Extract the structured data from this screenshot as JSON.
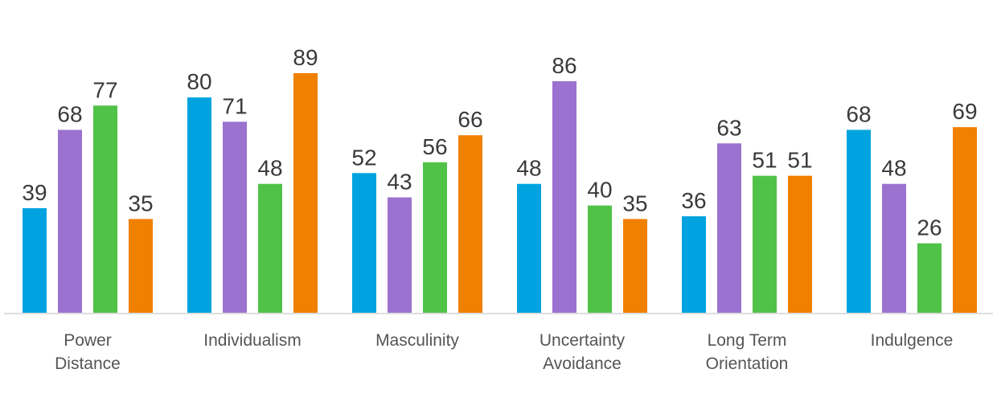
{
  "chart_data": {
    "type": "bar",
    "title": "",
    "xlabel": "",
    "ylabel": "",
    "ylim": [
      0,
      100
    ],
    "grid": false,
    "legend": "none",
    "categories": [
      [
        "Power",
        "Distance"
      ],
      [
        "Individualism"
      ],
      [
        "Masculinity"
      ],
      [
        "Uncertainty",
        "Avoidance"
      ],
      [
        "Long Term",
        "Orientation"
      ],
      [
        "Indulgence"
      ]
    ],
    "series": [
      {
        "name": "series-1",
        "color": "#00a3df",
        "values": [
          39,
          80,
          52,
          48,
          36,
          68
        ]
      },
      {
        "name": "series-2",
        "color": "#9b72cf",
        "values": [
          68,
          71,
          43,
          86,
          63,
          48
        ]
      },
      {
        "name": "series-3",
        "color": "#51c248",
        "values": [
          77,
          48,
          56,
          40,
          51,
          26
        ]
      },
      {
        "name": "series-4",
        "color": "#f08000",
        "values": [
          35,
          89,
          66,
          35,
          51,
          69
        ]
      }
    ]
  },
  "colors": {
    "axis": "#dddddd",
    "value_text": "#3a3a3a",
    "category_text": "#555555"
  }
}
